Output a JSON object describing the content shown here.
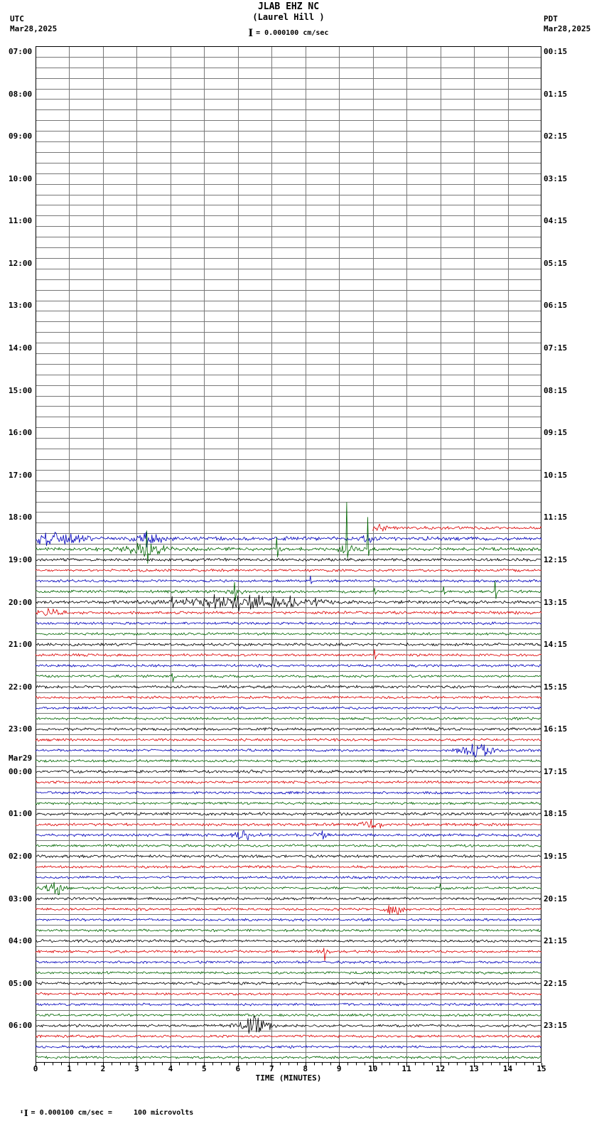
{
  "header": {
    "title": "JLAB EHZ NC",
    "subtitle": "(Laurel Hill )",
    "left_tz": "UTC",
    "left_date": "Mar28,2025",
    "right_tz": "PDT",
    "right_date": "Mar28,2025",
    "scale_bar": "I",
    "scale_label": "= 0.000100 cm/sec"
  },
  "footer": {
    "resize_icon": "↕",
    "scale_bar": "I",
    "note": "= 0.000100 cm/sec =     100 microvolts"
  },
  "axis": {
    "xlabel": "TIME (MINUTES)",
    "x_ticks": [
      "0",
      "1",
      "2",
      "3",
      "4",
      "5",
      "6",
      "7",
      "8",
      "9",
      "10",
      "11",
      "12",
      "13",
      "14",
      "15"
    ]
  },
  "chart_data": {
    "type": "line",
    "kind": "helicorder-seismogram",
    "station": "JLAB EHZ NC (Laurel Hill )",
    "x_min": 0,
    "x_max": 15,
    "minutes_per_row": 15,
    "rows_total": 96,
    "first_row_utc": "07:00 Mar28,2025 UTC",
    "trace_colors": [
      "#000000",
      "#dd0000",
      "#0000bb",
      "#006600"
    ],
    "grid_color": "#777777",
    "left_labels": [
      "07:00",
      "08:00",
      "09:00",
      "10:00",
      "11:00",
      "12:00",
      "13:00",
      "14:00",
      "15:00",
      "16:00",
      "17:00",
      "18:00",
      "19:00",
      "20:00",
      "21:00",
      "22:00",
      "23:00",
      "00:00",
      "01:00",
      "02:00",
      "03:00",
      "04:00",
      "05:00",
      "06:00"
    ],
    "left_date_marker": {
      "index": 17,
      "text": "Mar29"
    },
    "right_labels": [
      "00:15",
      "01:15",
      "02:15",
      "03:15",
      "04:15",
      "05:15",
      "06:15",
      "07:15",
      "08:15",
      "09:15",
      "10:15",
      "11:15",
      "12:15",
      "13:15",
      "14:15",
      "15:15",
      "16:15",
      "17:15",
      "18:15",
      "19:15",
      "20:15",
      "21:15",
      "22:15",
      "23:15"
    ],
    "first_active_row": 45,
    "default_amp": 1.3,
    "rows_detail": [
      {
        "row": 45,
        "utc": "18:15",
        "start": 10,
        "amp": 1.6,
        "bursts": [
          [
            10.2,
            0.2,
            3
          ]
        ]
      },
      {
        "row": 46,
        "utc": "18:30",
        "amp": 2.0,
        "bursts": [
          [
            0.45,
            0.8,
            6
          ],
          [
            3.35,
            0.45,
            4
          ],
          [
            9.9,
            0.25,
            3
          ]
        ],
        "spikes": [
          [
            0.3,
            8,
            10
          ],
          [
            1.05,
            7,
            6
          ],
          [
            3.27,
            9,
            12
          ]
        ]
      },
      {
        "row": 47,
        "utc": "18:45",
        "amp": 1.8,
        "bursts": [
          [
            3.3,
            0.6,
            7
          ],
          [
            9.25,
            0.25,
            4
          ]
        ],
        "spikes": [
          [
            3.3,
            26,
            20
          ],
          [
            7.15,
            17,
            11
          ],
          [
            9.22,
            66,
            12
          ],
          [
            9.85,
            45,
            9
          ]
        ]
      },
      {
        "row": 48,
        "utc": "19:00",
        "amp": 1.5
      },
      {
        "row": 50,
        "utc": "19:30",
        "amp": 1.3,
        "spikes": [
          [
            8.15,
            7,
            4
          ]
        ]
      },
      {
        "row": 51,
        "utc": "19:45",
        "amp": 1.5,
        "bursts": [
          [
            5.9,
            0.2,
            4
          ]
        ],
        "spikes": [
          [
            5.9,
            13,
            13
          ],
          [
            10.05,
            5,
            4
          ],
          [
            12.1,
            7,
            4
          ],
          [
            13.62,
            15,
            10
          ]
        ]
      },
      {
        "row": 52,
        "utc": "20:00",
        "amp": 1.7,
        "bursts": [
          [
            6.2,
            1.8,
            5
          ]
        ],
        "spikes": [
          [
            4.05,
            8,
            8
          ],
          [
            5.3,
            11,
            9
          ],
          [
            6.0,
            9,
            13
          ],
          [
            6.35,
            10,
            10
          ],
          [
            7.05,
            8,
            8
          ],
          [
            7.55,
            9,
            7
          ],
          [
            8.3,
            6,
            6
          ]
        ]
      },
      {
        "row": 53,
        "utc": "20:15",
        "amp": 1.5,
        "bursts": [
          [
            0.45,
            0.3,
            4
          ]
        ]
      },
      {
        "row": 56,
        "utc": "21:00",
        "amp": 1.5
      },
      {
        "row": 57,
        "utc": "21:15",
        "amp": 1.3,
        "spikes": [
          [
            10.05,
            8,
            6
          ]
        ]
      },
      {
        "row": 59,
        "utc": "21:45",
        "amp": 1.3,
        "spikes": [
          [
            4.05,
            4,
            8
          ]
        ]
      },
      {
        "row": 60,
        "utc": "22:00",
        "amp": 1.5
      },
      {
        "row": 64,
        "utc": "23:00",
        "amp": 1.5
      },
      {
        "row": 66,
        "utc": "23:30",
        "amp": 1.3,
        "bursts": [
          [
            13.1,
            0.45,
            7
          ]
        ],
        "spikes": [
          [
            12.95,
            9,
            7
          ],
          [
            13.3,
            8,
            8
          ]
        ]
      },
      {
        "row": 68,
        "utc": "00:00",
        "amp": 1.5
      },
      {
        "row": 72,
        "utc": "01:00",
        "amp": 1.5
      },
      {
        "row": 73,
        "utc": "01:15",
        "amp": 1.4,
        "bursts": [
          [
            9.95,
            0.3,
            5
          ]
        ],
        "spikes": [
          [
            9.95,
            7,
            5
          ]
        ]
      },
      {
        "row": 74,
        "utc": "01:30",
        "amp": 1.4,
        "bursts": [
          [
            6.2,
            0.35,
            5
          ],
          [
            8.5,
            0.2,
            4
          ]
        ],
        "spikes": [
          [
            8.5,
            6,
            6
          ]
        ]
      },
      {
        "row": 76,
        "utc": "02:00",
        "amp": 1.4
      },
      {
        "row": 79,
        "utc": "02:45",
        "amp": 1.3,
        "bursts": [
          [
            0.6,
            0.3,
            6
          ]
        ],
        "spikes": [
          [
            0.55,
            8,
            8
          ],
          [
            12.0,
            6,
            3
          ]
        ]
      },
      {
        "row": 80,
        "utc": "03:00",
        "amp": 1.4
      },
      {
        "row": 81,
        "utc": "03:15",
        "amp": 1.3,
        "bursts": [
          [
            10.65,
            0.25,
            5
          ]
        ]
      },
      {
        "row": 84,
        "utc": "04:00",
        "amp": 1.4
      },
      {
        "row": 85,
        "utc": "04:15",
        "amp": 1.3,
        "bursts": [
          [
            8.55,
            0.15,
            3
          ]
        ],
        "spikes": [
          [
            8.55,
            5,
            13
          ]
        ]
      },
      {
        "row": 88,
        "utc": "05:00",
        "amp": 1.4
      },
      {
        "row": 92,
        "utc": "06:00",
        "amp": 1.4,
        "bursts": [
          [
            6.45,
            0.45,
            9
          ]
        ],
        "spikes": [
          [
            6.3,
            10,
            11
          ],
          [
            6.6,
            11,
            9
          ]
        ]
      }
    ]
  }
}
